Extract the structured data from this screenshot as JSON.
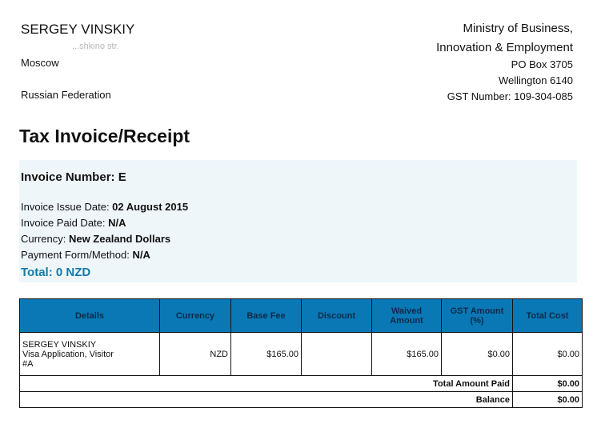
{
  "sender": {
    "name": "SERGEY VINSKIY",
    "street": "...shkino str.",
    "city": "Moscow",
    "country": "Russian Federation"
  },
  "recipient": {
    "line1": "Ministry of Business,",
    "line2": "Innovation & Employment",
    "line3": "PO Box 3705",
    "line4": "Wellington 6140",
    "line5": "GST Number: 109-304-085"
  },
  "title": "Tax Invoice/Receipt",
  "invoice": {
    "number_label": "Invoice Number: E",
    "issue_label": "Invoice Issue Date: ",
    "issue_value": "02 August 2015",
    "paid_label": "Invoice Paid Date: ",
    "paid_value": "N/A",
    "currency_label": "Currency: ",
    "currency_value": "New Zealand Dollars",
    "payment_label": "Payment Form/Method: ",
    "payment_value": "N/A",
    "total": "Total: 0 NZD"
  },
  "table": {
    "headers": [
      "Details",
      "Currency",
      "Base Fee",
      "Discount",
      "Waived Amount",
      "GST Amount (%)",
      "Total Cost"
    ],
    "row": {
      "details": [
        "SERGEY VINSKIY",
        "Visa Application, Visitor",
        "#A"
      ],
      "currency": "NZD",
      "base_fee": "$165.00",
      "discount": "",
      "waived": "$165.00",
      "gst": "$0.00",
      "total": "$0.00"
    },
    "total_paid_label": "Total Amount Paid",
    "total_paid": "$0.00",
    "balance_label": "Balance",
    "balance": "$0.00"
  },
  "colors": {
    "header_bg": "#0a78b4",
    "total_text": "#1479a8",
    "box_bg": "#eef6fa"
  }
}
